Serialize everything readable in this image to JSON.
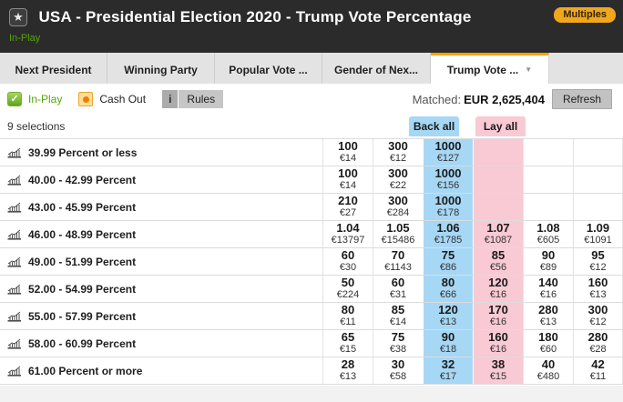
{
  "header": {
    "title": "USA - Presidential Election 2020 - Trump Vote Percentage",
    "status": "In-Play",
    "multiples_label": "Multiples",
    "star_icon": "★"
  },
  "tabs": [
    {
      "label": "Next President",
      "active": false
    },
    {
      "label": "Winning Party",
      "active": false
    },
    {
      "label": "Popular Vote ...",
      "active": false
    },
    {
      "label": "Gender of Nex...",
      "active": false
    },
    {
      "label": "Trump Vote ...",
      "active": true
    }
  ],
  "toolbar": {
    "inplay_label": "In-Play",
    "inplay_check": "✓",
    "cashout_label": "Cash Out",
    "rules_info": "i",
    "rules_label": "Rules",
    "matched_label": "Matched:",
    "matched_value": "EUR 2,625,404",
    "refresh_label": "Refresh"
  },
  "market": {
    "selections_count": "9 selections",
    "back_all_label": "Back all",
    "lay_all_label": "Lay all",
    "colors": {
      "back_blue": "#a6d7f5",
      "lay_pink": "#f9c9d4",
      "accent_orange": "#f8a600",
      "inplay_green": "#54a40c",
      "multiples_yellow": "#f0a71c",
      "header_dark": "#2b2b2b"
    },
    "rows": [
      {
        "name": "39.99 Percent or less",
        "cells": [
          {
            "price": "100",
            "stake": "€14",
            "type": "plain"
          },
          {
            "price": "300",
            "stake": "€12",
            "type": "plain"
          },
          {
            "price": "1000",
            "stake": "€127",
            "type": "back"
          },
          {
            "price": null,
            "stake": null,
            "type": "lay"
          },
          {
            "price": null,
            "stake": null,
            "type": "plain"
          },
          {
            "price": null,
            "stake": null,
            "type": "plain"
          }
        ]
      },
      {
        "name": "40.00 - 42.99 Percent",
        "cells": [
          {
            "price": "100",
            "stake": "€14",
            "type": "plain"
          },
          {
            "price": "300",
            "stake": "€22",
            "type": "plain"
          },
          {
            "price": "1000",
            "stake": "€156",
            "type": "back"
          },
          {
            "price": null,
            "stake": null,
            "type": "lay"
          },
          {
            "price": null,
            "stake": null,
            "type": "plain"
          },
          {
            "price": null,
            "stake": null,
            "type": "plain"
          }
        ]
      },
      {
        "name": "43.00 - 45.99 Percent",
        "cells": [
          {
            "price": "210",
            "stake": "€27",
            "type": "plain"
          },
          {
            "price": "300",
            "stake": "€284",
            "type": "plain"
          },
          {
            "price": "1000",
            "stake": "€178",
            "type": "back"
          },
          {
            "price": null,
            "stake": null,
            "type": "lay"
          },
          {
            "price": null,
            "stake": null,
            "type": "plain"
          },
          {
            "price": null,
            "stake": null,
            "type": "plain"
          }
        ]
      },
      {
        "name": "46.00 - 48.99 Percent",
        "cells": [
          {
            "price": "1.04",
            "stake": "€13797",
            "type": "plain"
          },
          {
            "price": "1.05",
            "stake": "€15486",
            "type": "plain"
          },
          {
            "price": "1.06",
            "stake": "€1785",
            "type": "back"
          },
          {
            "price": "1.07",
            "stake": "€1087",
            "type": "lay"
          },
          {
            "price": "1.08",
            "stake": "€605",
            "type": "plain"
          },
          {
            "price": "1.09",
            "stake": "€1091",
            "type": "plain"
          }
        ]
      },
      {
        "name": "49.00 - 51.99 Percent",
        "cells": [
          {
            "price": "60",
            "stake": "€30",
            "type": "plain"
          },
          {
            "price": "70",
            "stake": "€1143",
            "type": "plain"
          },
          {
            "price": "75",
            "stake": "€86",
            "type": "back"
          },
          {
            "price": "85",
            "stake": "€56",
            "type": "lay"
          },
          {
            "price": "90",
            "stake": "€89",
            "type": "plain"
          },
          {
            "price": "95",
            "stake": "€12",
            "type": "plain"
          }
        ]
      },
      {
        "name": "52.00 - 54.99 Percent",
        "cells": [
          {
            "price": "50",
            "stake": "€224",
            "type": "plain"
          },
          {
            "price": "60",
            "stake": "€31",
            "type": "plain"
          },
          {
            "price": "80",
            "stake": "€66",
            "type": "back"
          },
          {
            "price": "120",
            "stake": "€16",
            "type": "lay"
          },
          {
            "price": "140",
            "stake": "€16",
            "type": "plain"
          },
          {
            "price": "160",
            "stake": "€13",
            "type": "plain"
          }
        ]
      },
      {
        "name": "55.00 - 57.99 Percent",
        "cells": [
          {
            "price": "80",
            "stake": "€11",
            "type": "plain"
          },
          {
            "price": "85",
            "stake": "€14",
            "type": "plain"
          },
          {
            "price": "120",
            "stake": "€13",
            "type": "back"
          },
          {
            "price": "170",
            "stake": "€16",
            "type": "lay"
          },
          {
            "price": "280",
            "stake": "€13",
            "type": "plain"
          },
          {
            "price": "300",
            "stake": "€12",
            "type": "plain"
          }
        ]
      },
      {
        "name": "58.00 - 60.99 Percent",
        "cells": [
          {
            "price": "65",
            "stake": "€15",
            "type": "plain"
          },
          {
            "price": "75",
            "stake": "€38",
            "type": "plain"
          },
          {
            "price": "90",
            "stake": "€18",
            "type": "back"
          },
          {
            "price": "160",
            "stake": "€16",
            "type": "lay"
          },
          {
            "price": "180",
            "stake": "€60",
            "type": "plain"
          },
          {
            "price": "280",
            "stake": "€28",
            "type": "plain"
          }
        ]
      },
      {
        "name": "61.00 Percent or more",
        "cells": [
          {
            "price": "28",
            "stake": "€13",
            "type": "plain"
          },
          {
            "price": "30",
            "stake": "€58",
            "type": "plain"
          },
          {
            "price": "32",
            "stake": "€17",
            "type": "back"
          },
          {
            "price": "38",
            "stake": "€15",
            "type": "lay"
          },
          {
            "price": "40",
            "stake": "€480",
            "type": "plain"
          },
          {
            "price": "42",
            "stake": "€11",
            "type": "plain"
          }
        ]
      }
    ]
  }
}
